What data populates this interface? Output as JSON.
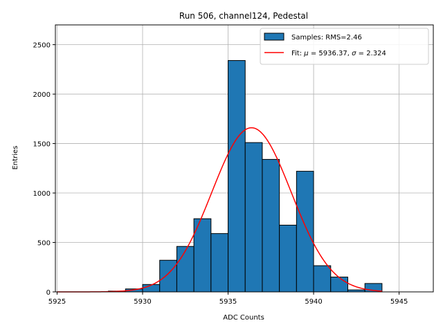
{
  "chart_data": {
    "type": "bar",
    "title": "Run 506, channel124, Pedestal",
    "xlabel": "ADC Counts",
    "ylabel": "Entries",
    "xlim": [
      5924.9,
      5947.0
    ],
    "ylim": [
      0,
      2700
    ],
    "xticks": [
      5925,
      5930,
      5935,
      5940,
      5945
    ],
    "yticks": [
      0,
      500,
      1000,
      1500,
      2000,
      2500
    ],
    "grid": true,
    "legend_position": "top-right",
    "bar_color": "#1f77b4",
    "fit_color": "#ff0000",
    "histogram": {
      "name": "Samples: RMS=2.46",
      "bin_width": 1,
      "bins": [
        {
          "x_start": 5928,
          "value": 8
        },
        {
          "x_start": 5929,
          "value": 30
        },
        {
          "x_start": 5930,
          "value": 75
        },
        {
          "x_start": 5931,
          "value": 320
        },
        {
          "x_start": 5932,
          "value": 460
        },
        {
          "x_start": 5933,
          "value": 740
        },
        {
          "x_start": 5934,
          "value": 590
        },
        {
          "x_start": 5935,
          "value": 2340
        },
        {
          "x_start": 5936,
          "value": 1510
        },
        {
          "x_start": 5937,
          "value": 1340
        },
        {
          "x_start": 5938,
          "value": 675
        },
        {
          "x_start": 5939,
          "value": 1220
        },
        {
          "x_start": 5940,
          "value": 265
        },
        {
          "x_start": 5941,
          "value": 150
        },
        {
          "x_start": 5942,
          "value": 20
        },
        {
          "x_start": 5943,
          "value": 85
        }
      ]
    },
    "fit": {
      "name_prefix": "Fit: ",
      "name_mu": "μ",
      "name_mid": " = 5936.37, ",
      "name_sigma": "σ",
      "name_suffix": " = 2.324",
      "mu": 5936.37,
      "sigma": 2.324,
      "amplitude": 1660,
      "x_range": [
        5925,
        5944
      ]
    }
  }
}
